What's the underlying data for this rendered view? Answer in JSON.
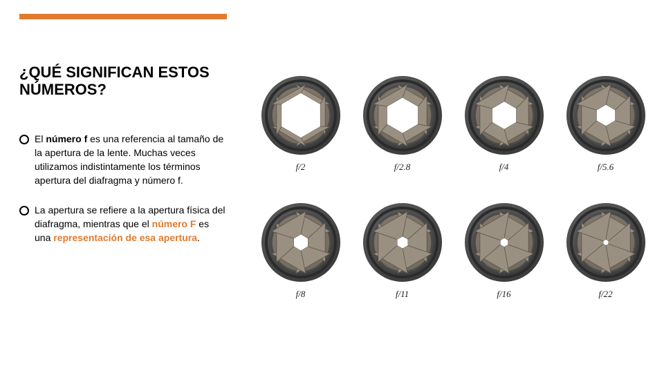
{
  "accent_color": "#e07b2e",
  "highlight_color": "#e07b2e",
  "title": "¿QUÉ SIGNIFICAN ESTOS NÚMEROS?",
  "bullets": [
    {
      "text_pre": "El ",
      "bold1": "número f",
      "text_mid": " es una referencia al tamaño de la apertura de la lente. Muchas veces utilizamos indistintamente los términos apertura del diafragma y número f.",
      "hl1": "",
      "text_mid2": "",
      "hl2": "",
      "text_tail": ""
    },
    {
      "text_pre": "La apertura se refiere a la apertura física del diafragma, mientras que el ",
      "bold1": "",
      "text_mid": "",
      "hl1": "número F",
      "text_mid2": " es una ",
      "hl2": "representación de esa apertura",
      "text_tail": "."
    }
  ],
  "lens_style": {
    "outer_ring_dark": "#3a3a3a",
    "outer_ring_light": "#6b6b6b",
    "body_fill": "#8f8578",
    "body_shadow": "#6e6659",
    "blade_fill": "#9a9082",
    "blade_stroke": "#5a5248",
    "hole_fill": "#ffffff",
    "blade_count": 6
  },
  "apertures": [
    {
      "label": "f/2",
      "opening": 0.78
    },
    {
      "label": "f/2.8",
      "opening": 0.62
    },
    {
      "label": "f/4",
      "opening": 0.48
    },
    {
      "label": "f/5.6",
      "opening": 0.37
    },
    {
      "label": "f/8",
      "opening": 0.28
    },
    {
      "label": "f/11",
      "opening": 0.21
    },
    {
      "label": "f/16",
      "opening": 0.15
    },
    {
      "label": "f/22",
      "opening": 0.1
    }
  ]
}
